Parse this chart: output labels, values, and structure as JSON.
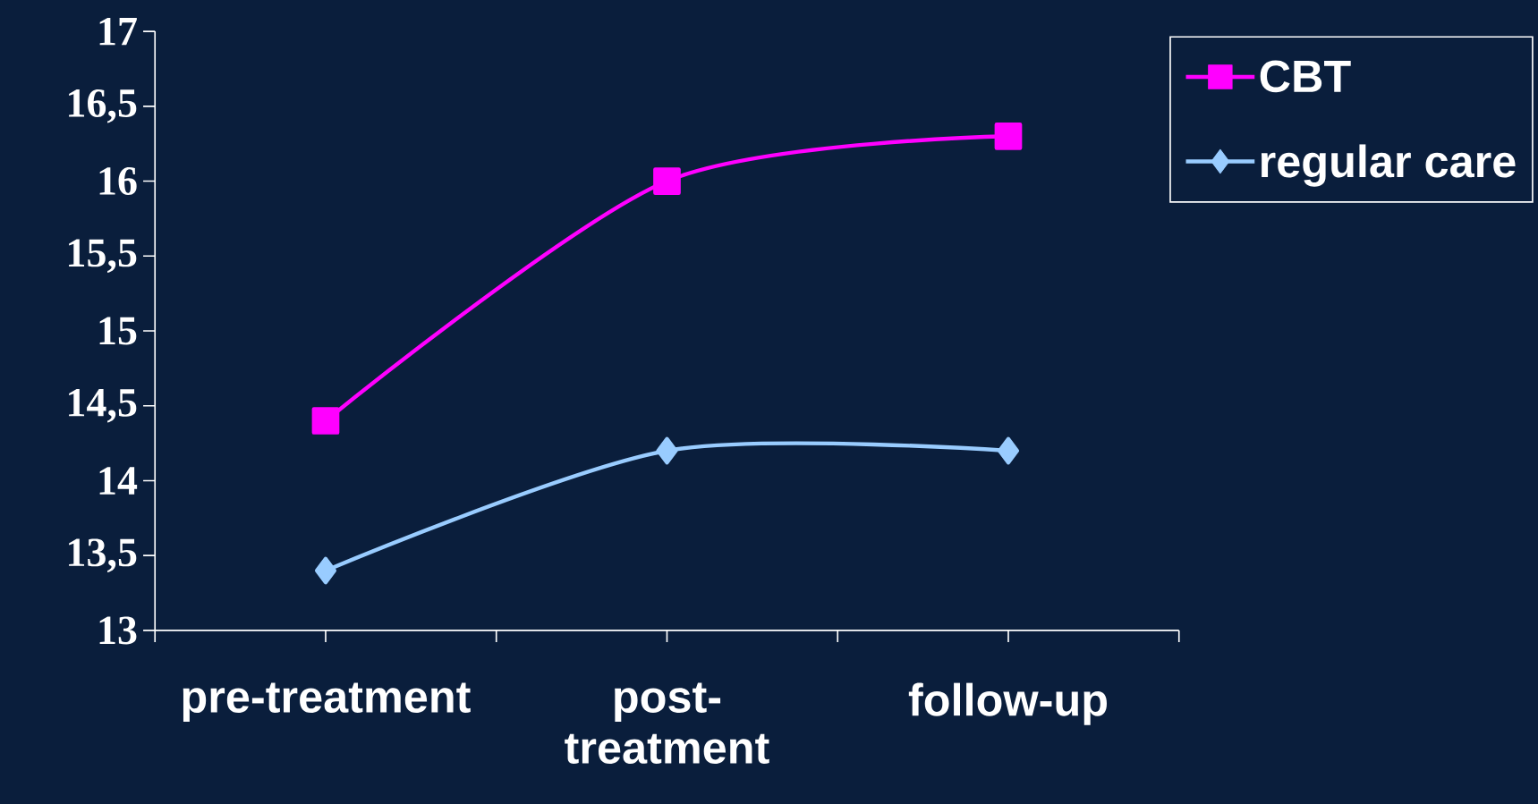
{
  "chart_data": {
    "type": "line",
    "categories": [
      "pre-treatment",
      "post-treatment",
      "follow-up"
    ],
    "series": [
      {
        "name": "CBT",
        "color": "#ff00ff",
        "marker": "square",
        "values": [
          14.4,
          16.0,
          16.3
        ]
      },
      {
        "name": "regular care",
        "color": "#99ccff",
        "marker": "diamond",
        "values": [
          13.4,
          14.2,
          14.2
        ]
      }
    ],
    "ylim": [
      13,
      17
    ],
    "yticks": [
      13,
      {
        "value": 13.5,
        "label": "13,5"
      },
      14,
      {
        "value": 14.5,
        "label": "14,5"
      },
      15,
      {
        "value": 15.5,
        "label": "15,5"
      },
      16,
      {
        "value": 16.5,
        "label": "16,5"
      },
      17
    ],
    "legend": "top right",
    "grid": false,
    "line_style": "solid"
  }
}
